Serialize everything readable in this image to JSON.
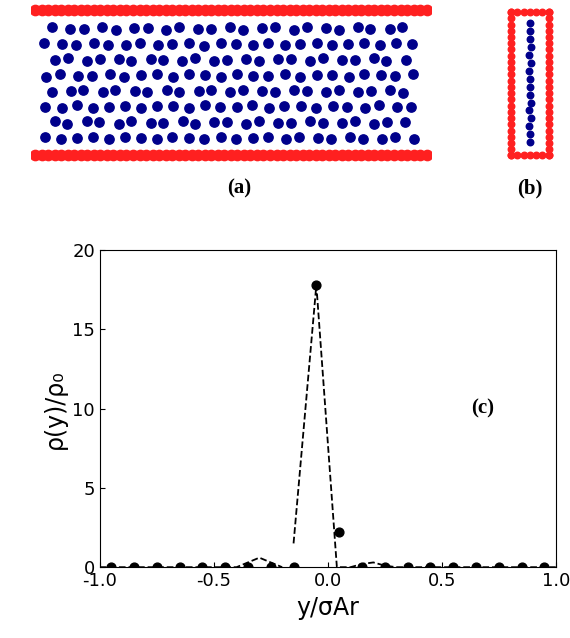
{
  "panels": [
    {
      "label": "(a)"
    },
    {
      "label": "(b)"
    }
  ],
  "chart_data": {
    "type": "scatter",
    "xlabel": "y/σAr",
    "ylabel": "ρ(y)/ρ₀",
    "annotations": [
      "(c)"
    ],
    "xlim": [
      -1.0,
      1.0
    ],
    "ylim": [
      0,
      20
    ],
    "xticks": [
      -1.0,
      -0.5,
      0.0,
      0.5,
      1.0
    ],
    "yticks": [
      0,
      5,
      10,
      15,
      20
    ],
    "series": [
      {
        "type": "scatter",
        "marker": "circle",
        "color": "#000000",
        "x": [
          -0.95,
          -0.85,
          -0.75,
          -0.65,
          -0.55,
          -0.45,
          -0.35,
          -0.25,
          -0.15,
          -0.05,
          0.05,
          0.15,
          0.25,
          0.35,
          0.45,
          0.55,
          0.65,
          0.75,
          0.85,
          0.95
        ],
        "values": [
          0,
          0,
          0,
          0,
          0,
          0,
          0,
          0,
          0,
          17.8,
          2.2,
          0,
          0,
          0,
          0,
          0,
          0,
          0,
          0,
          0
        ]
      },
      {
        "type": "line",
        "line_style": "dashed",
        "color": "#000000",
        "x": [
          -1.0,
          -0.4,
          -0.35,
          -0.3,
          -0.25,
          -0.2,
          -0.17,
          -0.15,
          -0.05,
          0.04,
          0.1,
          0.15,
          0.2,
          0.25,
          0.3,
          1.0
        ],
        "values": [
          0,
          0,
          0.3,
          0.6,
          0.3,
          0,
          null,
          1.5,
          17.8,
          0,
          0,
          0.2,
          0.3,
          0.1,
          0,
          0
        ]
      }
    ]
  }
}
